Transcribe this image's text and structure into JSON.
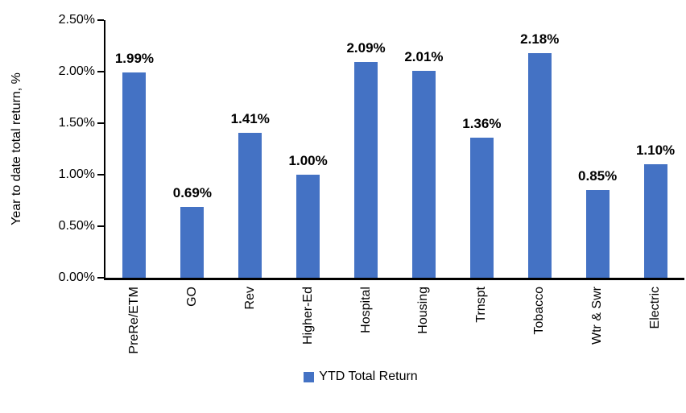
{
  "chart_data": {
    "type": "bar",
    "title": "",
    "categories": [
      "PreRe/ETM",
      "GO",
      "Rev",
      "Higher-Ed",
      "Hospital",
      "Housing",
      "Trnspt",
      "Tobacco",
      "Wtr & Swr",
      "Electric"
    ],
    "values": [
      1.99,
      0.69,
      1.41,
      1.0,
      2.09,
      2.01,
      1.36,
      2.18,
      0.85,
      1.1
    ],
    "data_labels": [
      "1.99%",
      "0.69%",
      "1.41%",
      "1.00%",
      "2.09%",
      "2.01%",
      "1.36%",
      "2.18%",
      "0.85%",
      "1.10%"
    ],
    "xlabel": "",
    "ylabel": "Year to date total return, %",
    "ylim": [
      0,
      2.5
    ],
    "ytick_labels": [
      "0.00%",
      "0.50%",
      "1.00%",
      "1.50%",
      "2.00%",
      "2.50%"
    ],
    "ytick_values": [
      0,
      0.5,
      1.0,
      1.5,
      2.0,
      2.5
    ],
    "grid": false,
    "legend_position": "bottom",
    "legend_label": "YTD Total Return",
    "bar_color": "#4472C4",
    "axis_color": "#000000",
    "label_color": "#000000"
  }
}
